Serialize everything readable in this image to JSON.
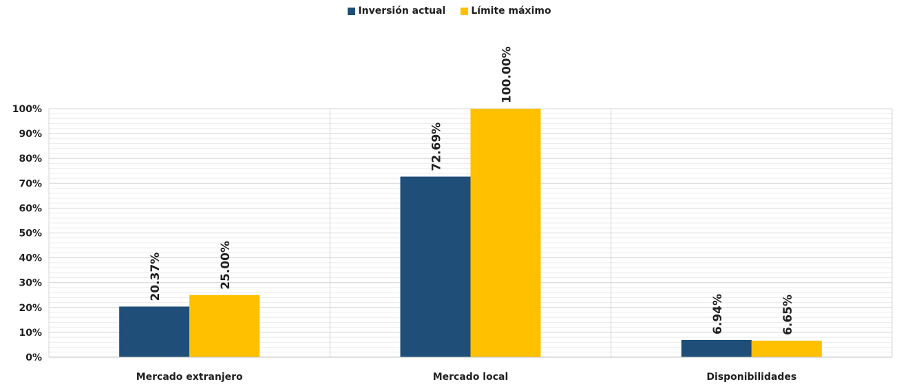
{
  "chart_data": {
    "type": "bar",
    "categories": [
      "Mercado extranjero",
      "Mercado local",
      "Disponibilidades"
    ],
    "series": [
      {
        "name": "Inversión actual",
        "color": "#1f4e79",
        "values": [
          20.37,
          72.69,
          6.94
        ],
        "labels": [
          "20.37%",
          "72.69%",
          "6.94%"
        ]
      },
      {
        "name": "Límite máximo",
        "color": "#ffc000",
        "values": [
          25.0,
          100.0,
          6.65
        ],
        "labels": [
          "25.00%",
          "100.00%",
          "6.65%"
        ]
      }
    ],
    "ylim": [
      0,
      100
    ],
    "yticks": [
      0,
      10,
      20,
      30,
      40,
      50,
      60,
      70,
      80,
      90,
      100
    ],
    "ytick_labels": [
      "0%",
      "10%",
      "20%",
      "30%",
      "40%",
      "50%",
      "60%",
      "70%",
      "80%",
      "90%",
      "100%"
    ],
    "grid": true,
    "legend": "top-center",
    "data_labels": true
  }
}
